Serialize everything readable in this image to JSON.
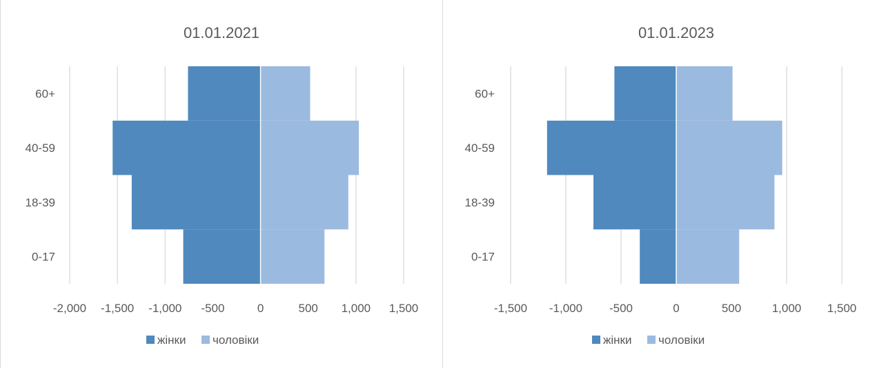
{
  "colors": {
    "women": "#4f89bd",
    "men": "#9bbae0",
    "grid": "#d9d9d9",
    "text": "#595959"
  },
  "chart_data": [
    {
      "type": "bar",
      "orientation": "horizontal",
      "stacked": true,
      "title": "01.01.2021",
      "categories": [
        "0-17",
        "18-39",
        "40-59",
        "60+"
      ],
      "series": [
        {
          "name": "жінки",
          "values": [
            -810,
            -1350,
            -1550,
            -760
          ]
        },
        {
          "name": "чоловіки",
          "values": [
            670,
            920,
            1030,
            520
          ]
        }
      ],
      "xlim": [
        -2000,
        1500
      ],
      "xticks": [
        -2000,
        -1500,
        -1000,
        -500,
        0,
        500,
        1000,
        1500
      ],
      "xtick_labels": [
        "-2,000",
        "-1,500",
        "-1,000",
        "-500",
        "0",
        "500",
        "1,000",
        "1,500"
      ],
      "grid": true,
      "legend": "bottom"
    },
    {
      "type": "bar",
      "orientation": "horizontal",
      "stacked": true,
      "title": "01.01.2023",
      "categories": [
        "0-17",
        "18-39",
        "40-59",
        "60+"
      ],
      "series": [
        {
          "name": "жінки",
          "values": [
            -330,
            -750,
            -1170,
            -560
          ]
        },
        {
          "name": "чоловіки",
          "values": [
            570,
            890,
            960,
            510
          ]
        }
      ],
      "xlim": [
        -1500,
        1500
      ],
      "xticks": [
        -1500,
        -1000,
        -500,
        0,
        500,
        1000,
        1500
      ],
      "xtick_labels": [
        "-1,500",
        "-1,000",
        "-500",
        "0",
        "500",
        "1,000",
        "1,500"
      ],
      "grid": true,
      "legend": "bottom"
    }
  ]
}
